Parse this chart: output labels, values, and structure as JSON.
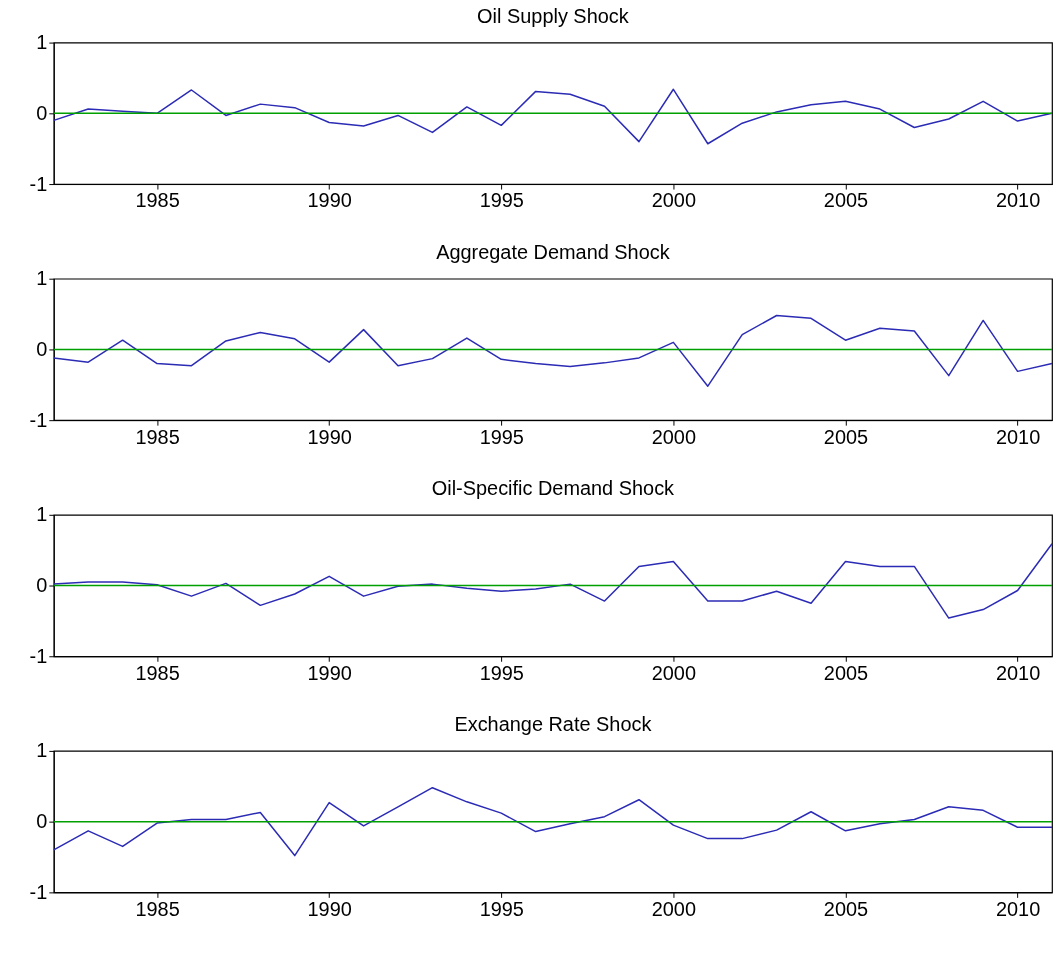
{
  "chart_data": [
    {
      "type": "line",
      "title": "Oil Supply Shock",
      "x": [
        1982,
        1983,
        1984,
        1985,
        1986,
        1987,
        1988,
        1989,
        1990,
        1991,
        1992,
        1993,
        1994,
        1995,
        1996,
        1997,
        1998,
        1999,
        2000,
        2001,
        2002,
        2003,
        2004,
        2005,
        2006,
        2007,
        2008,
        2009,
        2010,
        2011
      ],
      "series": [
        {
          "color": "#2b2bb5",
          "values": [
            -0.1,
            0.06,
            0.03,
            0,
            0.33,
            -0.03,
            0.13,
            0.08,
            -0.13,
            -0.18,
            -0.03,
            -0.27,
            0.09,
            -0.17,
            0.31,
            0.27,
            0.1,
            -0.4,
            0.34,
            -0.43,
            -0.14,
            0.02,
            0.12,
            0.17,
            0.06,
            -0.2,
            -0.08,
            0.17,
            -0.11,
            0
          ]
        }
      ],
      "xlim": [
        1982,
        2011
      ],
      "ylim": [
        -1,
        1
      ],
      "xticks": [
        1985,
        1990,
        1995,
        2000,
        2005,
        2010
      ],
      "yticks": [
        -1,
        0,
        1
      ],
      "grid": false,
      "ref_lines": [
        {
          "axis": "y",
          "value": 0,
          "color": "#00a000"
        }
      ]
    },
    {
      "type": "line",
      "title": "Aggregate Demand Shock",
      "x": [
        1982,
        1983,
        1984,
        1985,
        1986,
        1987,
        1988,
        1989,
        1990,
        1991,
        1992,
        1993,
        1994,
        1995,
        1996,
        1997,
        1998,
        1999,
        2000,
        2001,
        2002,
        2003,
        2004,
        2005,
        2006,
        2007,
        2008,
        2009,
        2010,
        2011
      ],
      "series": [
        {
          "color": "#2b2bb5",
          "values": [
            -0.12,
            -0.18,
            0.13,
            -0.2,
            -0.23,
            0.12,
            0.24,
            0.15,
            -0.18,
            0.28,
            -0.23,
            -0.13,
            0.16,
            -0.14,
            -0.2,
            -0.24,
            -0.19,
            -0.12,
            0.1,
            -0.52,
            0.21,
            0.48,
            0.44,
            0.13,
            0.3,
            0.26,
            -0.37,
            0.41,
            -0.31,
            -0.2
          ]
        }
      ],
      "xlim": [
        1982,
        2011
      ],
      "ylim": [
        -1,
        1
      ],
      "xticks": [
        1985,
        1990,
        1995,
        2000,
        2005,
        2010
      ],
      "yticks": [
        -1,
        0,
        1
      ],
      "grid": false,
      "ref_lines": [
        {
          "axis": "y",
          "value": 0,
          "color": "#00a000"
        }
      ]
    },
    {
      "type": "line",
      "title": "Oil-Specific Demand Shock",
      "x": [
        1982,
        1983,
        1984,
        1985,
        1986,
        1987,
        1988,
        1989,
        1990,
        1991,
        1992,
        1993,
        1994,
        1995,
        1996,
        1997,
        1998,
        1999,
        2000,
        2001,
        2002,
        2003,
        2004,
        2005,
        2006,
        2007,
        2008,
        2009,
        2010,
        2011
      ],
      "series": [
        {
          "color": "#2b2bb5",
          "values": [
            0.02,
            0.05,
            0.05,
            0.01,
            -0.15,
            0.03,
            -0.28,
            -0.12,
            0.13,
            -0.15,
            -0.01,
            0.02,
            -0.04,
            -0.08,
            -0.05,
            0.02,
            -0.22,
            0.27,
            0.34,
            -0.22,
            -0.22,
            -0.08,
            -0.25,
            0.34,
            0.27,
            0.27,
            -0.46,
            -0.34,
            -0.07,
            0.59
          ]
        }
      ],
      "xlim": [
        1982,
        2011
      ],
      "ylim": [
        -1,
        1
      ],
      "xticks": [
        1985,
        1990,
        1995,
        2000,
        2005,
        2010
      ],
      "yticks": [
        -1,
        0,
        1
      ],
      "grid": false,
      "ref_lines": [
        {
          "axis": "y",
          "value": 0,
          "color": "#00a000"
        }
      ]
    },
    {
      "type": "line",
      "title": "Exchange Rate Shock",
      "x": [
        1982,
        1983,
        1984,
        1985,
        1986,
        1987,
        1988,
        1989,
        1990,
        1991,
        1992,
        1993,
        1994,
        1995,
        1996,
        1997,
        1998,
        1999,
        2000,
        2001,
        2002,
        2003,
        2004,
        2005,
        2006,
        2007,
        2008,
        2009,
        2010,
        2011
      ],
      "series": [
        {
          "color": "#2b2bb5",
          "values": [
            -0.4,
            -0.13,
            -0.35,
            -0.02,
            0.03,
            0.03,
            0.13,
            -0.48,
            0.27,
            -0.06,
            0.21,
            0.48,
            0.28,
            0.12,
            -0.14,
            -0.03,
            0.07,
            0.31,
            -0.05,
            -0.24,
            -0.24,
            -0.12,
            0.14,
            -0.13,
            -0.03,
            0.03,
            0.21,
            0.16,
            -0.08,
            -0.08
          ]
        }
      ],
      "xlim": [
        1982,
        2011
      ],
      "ylim": [
        -1,
        1
      ],
      "xticks": [
        1985,
        1990,
        1995,
        2000,
        2005,
        2010
      ],
      "yticks": [
        -1,
        0,
        1
      ],
      "grid": false,
      "ref_lines": [
        {
          "axis": "y",
          "value": 0,
          "color": "#00a000"
        }
      ]
    }
  ]
}
